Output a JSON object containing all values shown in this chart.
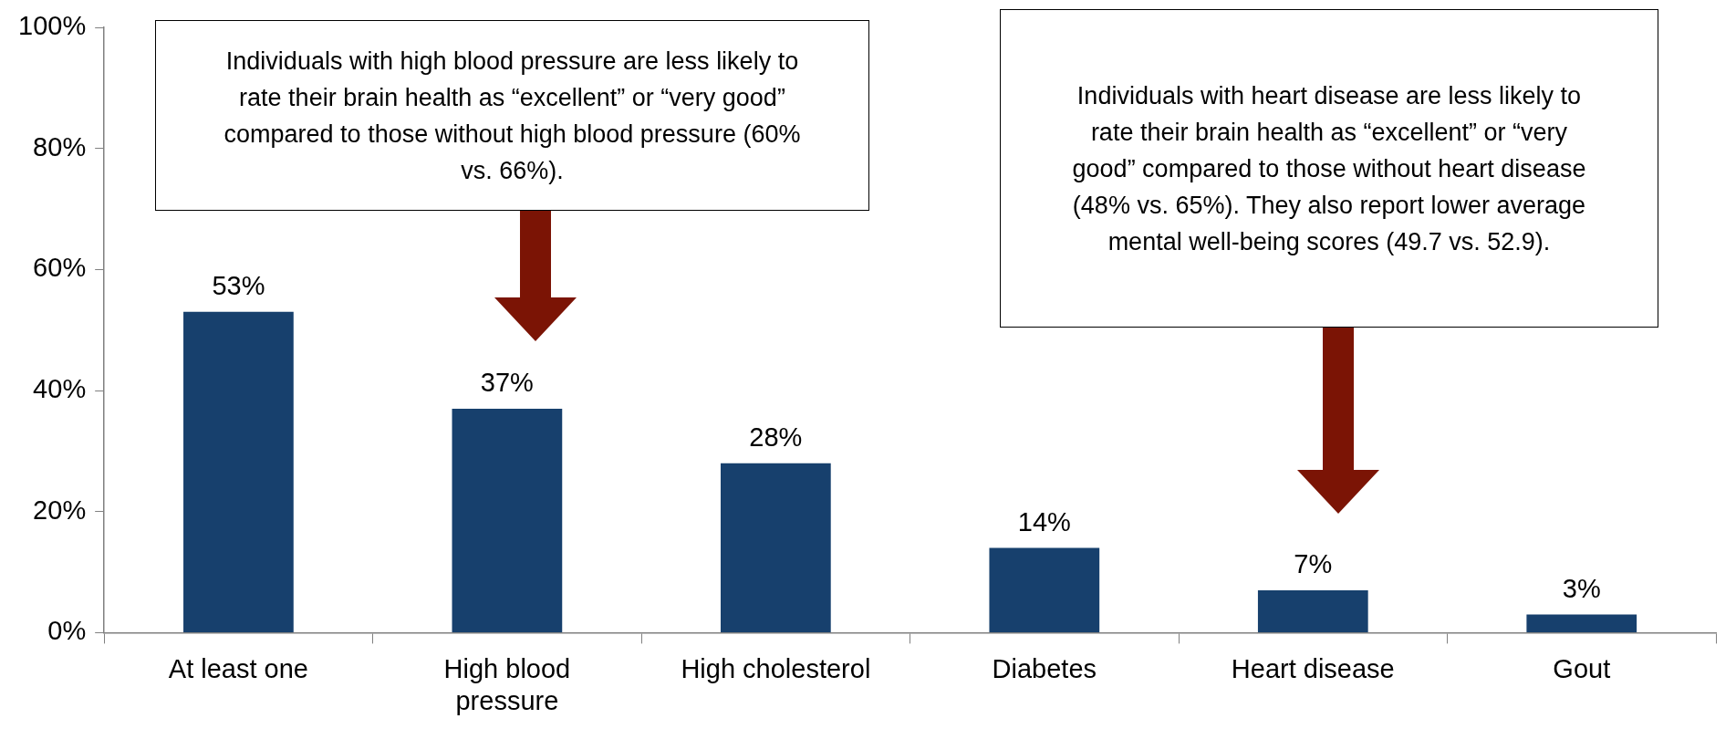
{
  "chart_data": {
    "type": "bar",
    "categories": [
      "At least one",
      "High blood pressure",
      "High cholesterol",
      "Diabetes",
      "Heart disease",
      "Gout"
    ],
    "values": [
      53,
      37,
      28,
      14,
      7,
      3
    ],
    "value_labels": [
      "53%",
      "37%",
      "28%",
      "14%",
      "7%",
      "3%"
    ],
    "color": "#17406d",
    "ylim": [
      0,
      100
    ],
    "yticks": [
      {
        "value": 0,
        "label": "0%"
      },
      {
        "value": 20,
        "label": "20%"
      },
      {
        "value": 40,
        "label": "40%"
      },
      {
        "value": 60,
        "label": "60%"
      },
      {
        "value": 80,
        "label": "80%"
      },
      {
        "value": 100,
        "label": "100%"
      }
    ],
    "grid": false,
    "legend": false,
    "annotations": [
      "Individuals with high blood pressure are less likely to rate their brain health as “excellent” or “very good” compared to those without high blood pressure (60% vs. 66%).",
      "Individuals with heart disease are less likely to rate their brain health as “excellent” or “very good” compared to those without heart disease (48% vs. 65%). They also report lower average mental well-being scores (49.7 vs. 52.9)."
    ]
  }
}
